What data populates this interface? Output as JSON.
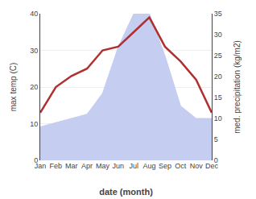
{
  "chart_data": {
    "type": "line",
    "categories": [
      "Jan",
      "Feb",
      "Mar",
      "Apr",
      "May",
      "Jun",
      "Jul",
      "Aug",
      "Sep",
      "Oct",
      "Nov",
      "Dec"
    ],
    "xlabel": "date (month)",
    "ylabel": "max temp (C)",
    "y2label": "med. precipitation (kg/m2)",
    "series": [
      {
        "type": "area",
        "axis": "y2",
        "color": "#c5cdf0",
        "values": [
          8,
          9,
          10,
          11,
          16,
          27,
          35,
          35,
          25,
          13,
          10,
          10
        ]
      },
      {
        "type": "line",
        "color": "#b03030",
        "values": [
          13,
          20,
          23,
          25,
          30,
          31,
          35,
          39,
          31,
          27,
          22,
          13
        ]
      }
    ],
    "ylim": [
      0,
      40
    ],
    "yticks": [
      0,
      10,
      20,
      30,
      40
    ],
    "y2lim": [
      0,
      35
    ],
    "y2ticks": [
      0,
      5,
      10,
      15,
      20,
      25,
      30,
      35
    ],
    "grid": true
  }
}
